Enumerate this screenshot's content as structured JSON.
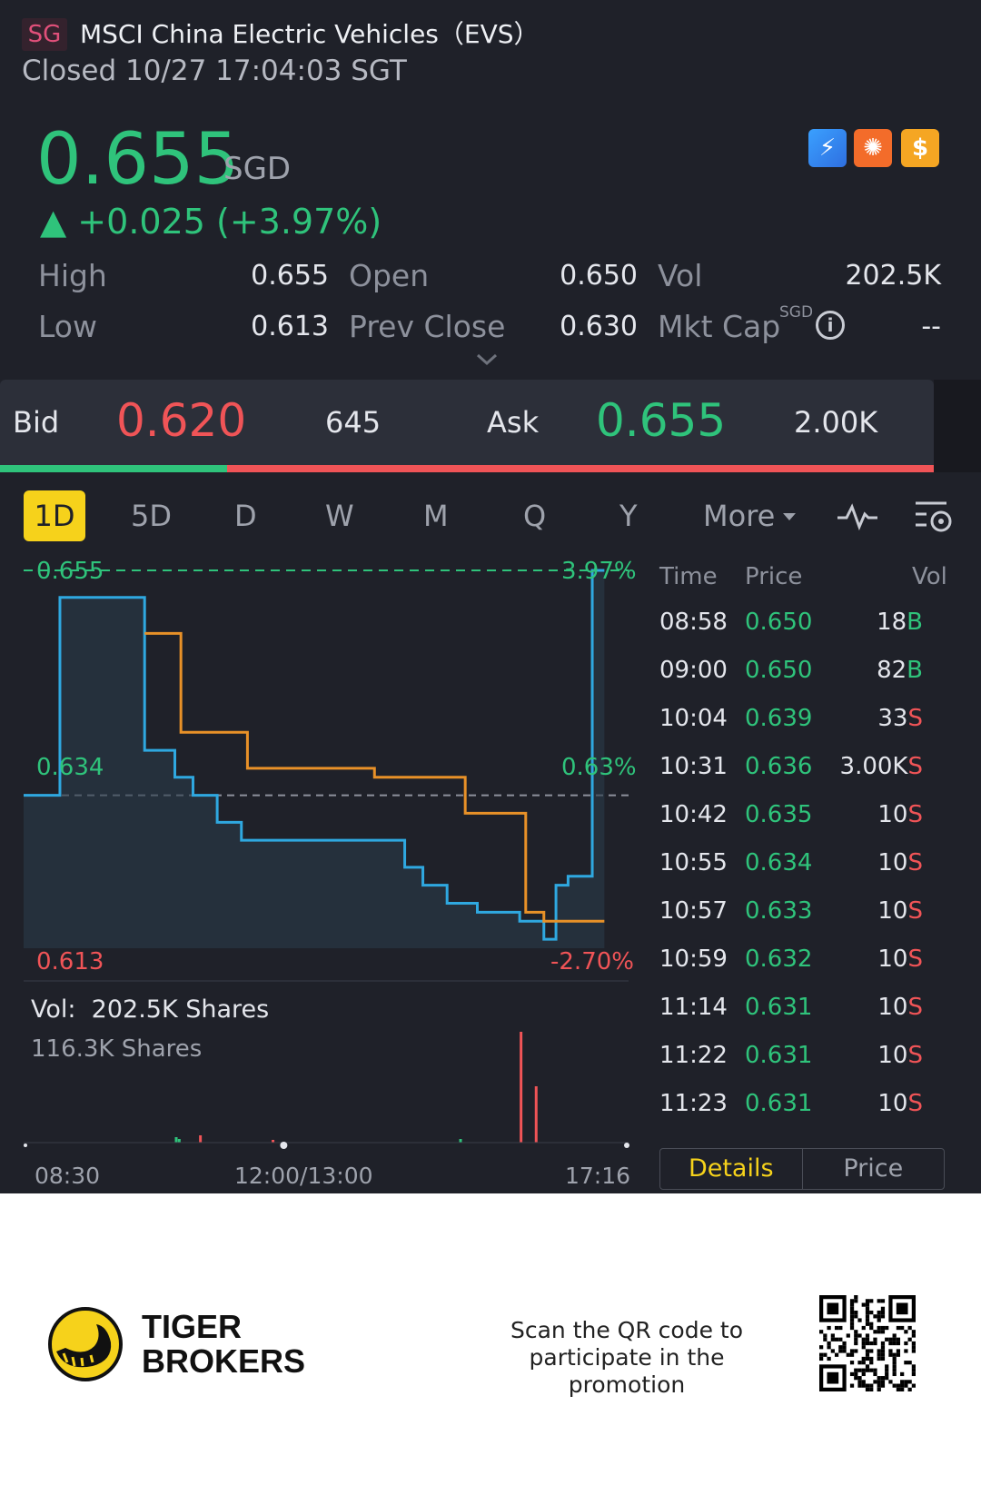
{
  "header": {
    "market": "SG",
    "title": "MSCI China Electric Vehicles（EVS）",
    "status": "Closed 10/27 17:04:03 SGT",
    "price": "0.655",
    "currency": "SGD",
    "change": "▲ +0.025 (+3.97%)"
  },
  "stats": {
    "high_label": "High",
    "high": "0.655",
    "low_label": "Low",
    "low": "0.613",
    "open_label": "Open",
    "open": "0.650",
    "prev_close_label": "Prev Close",
    "prev_close": "0.630",
    "vol_label": "Vol",
    "vol": "202.5K",
    "mktcap_label": "Mkt Cap",
    "mktcap_unit": "SGD",
    "mktcap": "--"
  },
  "bidask": {
    "bid_label": "Bid",
    "bid_price": "0.620",
    "bid_size": "645",
    "ask_label": "Ask",
    "ask_price": "0.655",
    "ask_size": "2.00K"
  },
  "tabs": [
    "1D",
    "5D",
    "D",
    "W",
    "M",
    "Q",
    "Y",
    "More"
  ],
  "chart_data": {
    "type": "line",
    "y_max_label": "0.655",
    "y_max_pct": "3.97%",
    "y_mid_label": "0.634",
    "y_mid_pct": "0.63%",
    "y_min_label": "0.613",
    "y_min_pct": "-2.70%",
    "x_ticks": [
      "08:30",
      "12:00/13:00",
      "17:16"
    ],
    "ylim": [
      0.613,
      0.655
    ],
    "prev_close": 0.63,
    "series": [
      {
        "color": "#2fa8e0",
        "points": [
          [
            0,
            0.63
          ],
          [
            0.06,
            0.63
          ],
          [
            0.06,
            0.652
          ],
          [
            0.2,
            0.652
          ],
          [
            0.2,
            0.635
          ],
          [
            0.25,
            0.635
          ],
          [
            0.25,
            0.632
          ],
          [
            0.28,
            0.632
          ],
          [
            0.28,
            0.63
          ],
          [
            0.32,
            0.63
          ],
          [
            0.32,
            0.627
          ],
          [
            0.36,
            0.627
          ],
          [
            0.36,
            0.625
          ],
          [
            0.45,
            0.625
          ],
          [
            0.45,
            0.625
          ],
          [
            0.63,
            0.625
          ],
          [
            0.63,
            0.622
          ],
          [
            0.66,
            0.622
          ],
          [
            0.66,
            0.62
          ],
          [
            0.7,
            0.62
          ],
          [
            0.7,
            0.618
          ],
          [
            0.75,
            0.618
          ],
          [
            0.75,
            0.617
          ],
          [
            0.82,
            0.617
          ],
          [
            0.82,
            0.616
          ],
          [
            0.86,
            0.616
          ],
          [
            0.86,
            0.614
          ],
          [
            0.88,
            0.614
          ],
          [
            0.88,
            0.62
          ],
          [
            0.9,
            0.62
          ],
          [
            0.9,
            0.621
          ],
          [
            0.94,
            0.621
          ],
          [
            0.94,
            0.655
          ],
          [
            0.96,
            0.655
          ]
        ]
      },
      {
        "color": "#e89128",
        "points": [
          [
            0.2,
            0.648
          ],
          [
            0.26,
            0.648
          ],
          [
            0.26,
            0.637
          ],
          [
            0.37,
            0.637
          ],
          [
            0.37,
            0.633
          ],
          [
            0.58,
            0.633
          ],
          [
            0.58,
            0.632
          ],
          [
            0.73,
            0.632
          ],
          [
            0.73,
            0.628
          ],
          [
            0.83,
            0.628
          ],
          [
            0.83,
            0.617
          ],
          [
            0.86,
            0.617
          ],
          [
            0.86,
            0.616
          ],
          [
            0.96,
            0.616
          ]
        ]
      }
    ]
  },
  "volume": {
    "label": "Vol:",
    "total": "202.5K Shares",
    "sub": "116.3K Shares"
  },
  "trades": {
    "headers": [
      "Time",
      "Price",
      "Vol"
    ],
    "rows": [
      {
        "time": "08:58",
        "price": "0.650",
        "vol": "18",
        "side": "B"
      },
      {
        "time": "09:00",
        "price": "0.650",
        "vol": "82",
        "side": "B"
      },
      {
        "time": "10:04",
        "price": "0.639",
        "vol": "33",
        "side": "S"
      },
      {
        "time": "10:31",
        "price": "0.636",
        "vol": "3.00K",
        "side": "S"
      },
      {
        "time": "10:42",
        "price": "0.635",
        "vol": "10",
        "side": "S"
      },
      {
        "time": "10:55",
        "price": "0.634",
        "vol": "10",
        "side": "S"
      },
      {
        "time": "10:57",
        "price": "0.633",
        "vol": "10",
        "side": "S"
      },
      {
        "time": "10:59",
        "price": "0.632",
        "vol": "10",
        "side": "S"
      },
      {
        "time": "11:14",
        "price": "0.631",
        "vol": "10",
        "side": "S"
      },
      {
        "time": "11:22",
        "price": "0.631",
        "vol": "10",
        "side": "S"
      },
      {
        "time": "11:23",
        "price": "0.631",
        "vol": "10",
        "side": "S"
      }
    ],
    "details_label": "Details",
    "price_label": "Price"
  },
  "footer": {
    "brand_line1": "TIGER",
    "brand_line2": "BROKERS",
    "promo_line1": "Scan the QR code to",
    "promo_line2": "participate in the promotion"
  },
  "colors": {
    "up": "#2fc37b",
    "down": "#f05457",
    "accent": "#f6d21b"
  }
}
